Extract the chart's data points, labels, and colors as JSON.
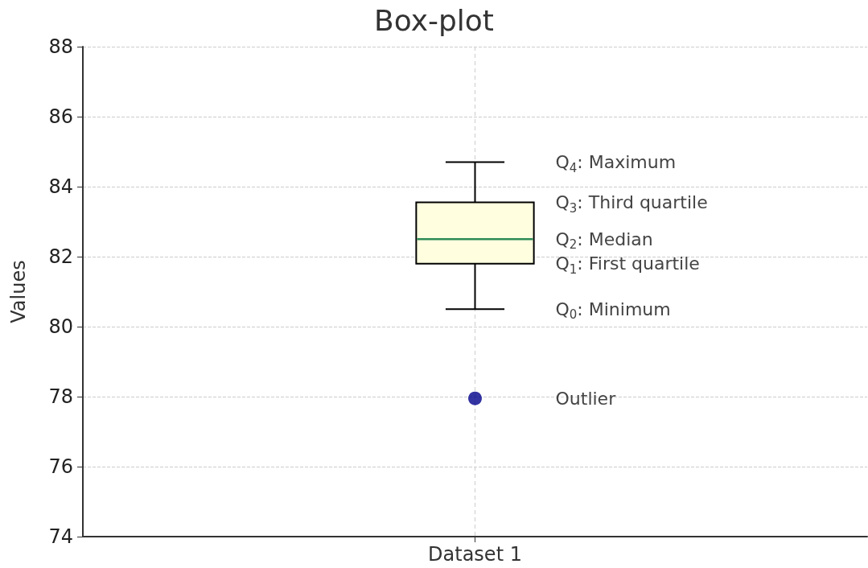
{
  "chart_data": {
    "type": "box",
    "title": "Box-plot",
    "ylabel": "Values",
    "categories": [
      "Dataset 1"
    ],
    "series": [
      {
        "color": "#ffffe0",
        "boxes": [
          {
            "low": 80.5,
            "q1": 81.8,
            "median": 82.5,
            "q3": 83.55,
            "high": 84.7,
            "outliers": [
              77.95
            ]
          }
        ]
      }
    ],
    "ylim": [
      74,
      88
    ],
    "yticks": [
      74,
      76,
      78,
      80,
      82,
      84,
      86,
      88
    ],
    "grid": true,
    "annotations": [
      "Q$_{4}$: Maximum",
      "Q$_{3}$: Third quartile",
      "Q$_{2}$: Median",
      "Q$_{1}$: First quartile",
      "Q$_{0}$: Minimum",
      "Outlier"
    ]
  }
}
